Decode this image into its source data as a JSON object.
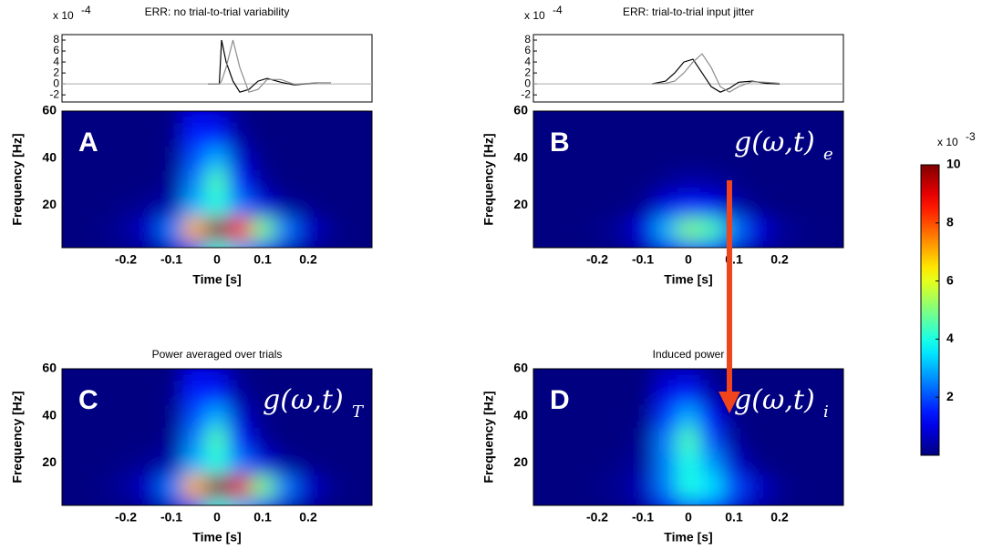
{
  "chart_data": [
    {
      "type": "line",
      "title": "ERR: no trial-to-trial variability",
      "exponent_label": {
        "base": "x 10",
        "exponent": "-4"
      },
      "x": [
        -0.02,
        0,
        0.005,
        0.01,
        0.02,
        0.035,
        0.05,
        0.07,
        0.09,
        0.11,
        0.14,
        0.17,
        0.22,
        0.25
      ],
      "series": [
        {
          "color": "#000000",
          "values": [
            0,
            0,
            0,
            8,
            4,
            0.5,
            -1.5,
            -1,
            0.5,
            1,
            0.3,
            -0.2,
            0.2,
            null
          ]
        },
        {
          "color": "#8c8c8c",
          "values": [
            0,
            0,
            0,
            0.5,
            3,
            8,
            3,
            -1.5,
            -1,
            0.8,
            0.8,
            -0.1,
            0.2,
            0.2
          ]
        }
      ],
      "xlim": [
        -0.34,
        0.34
      ],
      "ylim": [
        -3.3,
        9
      ],
      "yticks": [
        -2,
        0,
        2,
        4,
        6,
        8
      ],
      "zero_line": true
    },
    {
      "type": "line",
      "title": "ERR: trial-to-trial input jitter",
      "exponent_label": {
        "base": "x 10",
        "exponent": "-4"
      },
      "x": [
        -0.08,
        -0.05,
        -0.03,
        -0.01,
        0.01,
        0.03,
        0.05,
        0.07,
        0.09,
        0.11,
        0.14,
        0.17,
        0.2
      ],
      "series": [
        {
          "color": "#000000",
          "values": [
            0,
            0.5,
            2,
            4,
            4.5,
            2,
            -0.5,
            -1.5,
            -0.8,
            0.3,
            0.5,
            0.1,
            0
          ]
        },
        {
          "color": "#8c8c8c",
          "values": [
            0,
            0.1,
            0.5,
            2,
            4,
            5.5,
            3,
            -0.5,
            -1.5,
            -0.5,
            0.4,
            0.3,
            0.1
          ]
        }
      ],
      "xlim": [
        -0.34,
        0.34
      ],
      "ylim": [
        -3.3,
        9
      ],
      "yticks": [
        -2,
        0,
        2,
        4,
        6,
        8
      ],
      "zero_line": true
    },
    {
      "type": "heatmap",
      "panel_label": "A",
      "xlabel": "Time [s]",
      "ylabel": "Frequency [Hz]",
      "x": [
        -0.25,
        -0.2,
        -0.15,
        -0.1,
        -0.05,
        0,
        0.05,
        0.1,
        0.15,
        0.2,
        0.25
      ],
      "y": [
        0,
        10,
        20,
        30,
        40,
        50,
        60
      ],
      "z": [
        [
          0,
          0.1,
          0.2,
          0.6,
          2,
          4,
          3,
          1.5,
          0.5,
          0.2,
          0
        ],
        [
          0.1,
          0.3,
          0.8,
          2.5,
          7,
          10,
          8.5,
          5,
          2.5,
          0.8,
          0.2
        ],
        [
          0,
          0.1,
          0.2,
          0.5,
          3,
          4,
          2.5,
          1,
          0.3,
          0.1,
          0
        ],
        [
          0,
          0,
          0,
          0.2,
          2.5,
          4.5,
          1.5,
          0.3,
          0,
          0,
          0
        ],
        [
          0,
          0,
          0,
          0.1,
          2,
          3,
          0.8,
          0.1,
          0,
          0,
          0
        ],
        [
          0,
          0,
          0,
          0.1,
          1.5,
          1.5,
          0.3,
          0,
          0,
          0,
          0
        ],
        [
          0,
          0,
          0,
          0,
          1,
          0.8,
          0.1,
          0,
          0,
          0,
          0
        ]
      ],
      "xlim": [
        -0.34,
        0.34
      ],
      "ylim": [
        2,
        60
      ],
      "xticks": [
        -0.2,
        -0.1,
        0,
        0.1,
        0.2
      ],
      "yticks": [
        20,
        40,
        60
      ],
      "colormap": "jet"
    },
    {
      "type": "heatmap",
      "panel_label": "B",
      "annotation": {
        "text": "g(ω,t)",
        "subscript": "e"
      },
      "xlabel": "Time [s]",
      "ylabel": "Frequency [Hz]",
      "x": [
        -0.25,
        -0.2,
        -0.15,
        -0.1,
        -0.05,
        0,
        0.05,
        0.1,
        0.15,
        0.2,
        0.25
      ],
      "y": [
        0,
        10,
        20,
        30,
        40,
        50,
        60
      ],
      "z": [
        [
          0,
          0,
          0.1,
          0.3,
          1,
          1.8,
          1.5,
          0.7,
          0.3,
          0.1,
          0
        ],
        [
          0,
          0.1,
          0.3,
          1,
          3,
          5,
          4.5,
          2.5,
          1,
          0.3,
          0.1
        ],
        [
          0,
          0,
          0,
          0.2,
          1,
          1.5,
          1.2,
          0.5,
          0.1,
          0,
          0
        ],
        [
          0,
          0,
          0,
          0,
          0.2,
          0.4,
          0.3,
          0.1,
          0,
          0,
          0
        ],
        [
          0,
          0,
          0,
          0,
          0,
          0,
          0,
          0,
          0,
          0,
          0
        ],
        [
          0,
          0,
          0,
          0,
          0,
          0,
          0,
          0,
          0,
          0,
          0
        ],
        [
          0,
          0,
          0,
          0,
          0,
          0,
          0,
          0,
          0,
          0,
          0
        ]
      ],
      "xlim": [
        -0.34,
        0.34
      ],
      "ylim": [
        2,
        60
      ],
      "xticks": [
        -0.2,
        -0.1,
        0,
        0.1,
        0.2
      ],
      "yticks": [
        20,
        40,
        60
      ],
      "colormap": "jet"
    },
    {
      "type": "heatmap",
      "title": "Power averaged over trials",
      "panel_label": "C",
      "annotation": {
        "text": "g(ω,t)",
        "subscript": "T"
      },
      "xlabel": "Time [s]",
      "ylabel": "Frequency [Hz]",
      "x": [
        -0.25,
        -0.2,
        -0.15,
        -0.1,
        -0.05,
        0,
        0.05,
        0.1,
        0.15,
        0.2,
        0.25
      ],
      "y": [
        0,
        10,
        20,
        30,
        40,
        50,
        60
      ],
      "z": [
        [
          0,
          0.1,
          0.2,
          0.6,
          2,
          4,
          3.2,
          1.5,
          0.5,
          0.2,
          0
        ],
        [
          0.1,
          0.3,
          0.8,
          2.5,
          7,
          10,
          9,
          5,
          2.5,
          0.8,
          0.2
        ],
        [
          0,
          0.1,
          0.2,
          0.5,
          3,
          4,
          2.5,
          1,
          0.3,
          0.1,
          0
        ],
        [
          0,
          0,
          0,
          0.2,
          2.5,
          4.5,
          1.5,
          0.3,
          0,
          0,
          0
        ],
        [
          0,
          0,
          0,
          0.1,
          2,
          3,
          0.8,
          0.1,
          0,
          0,
          0
        ],
        [
          0,
          0,
          0,
          0.1,
          1.5,
          1.5,
          0.3,
          0,
          0,
          0,
          0
        ],
        [
          0,
          0,
          0,
          0,
          1,
          0.8,
          0.1,
          0,
          0,
          0,
          0
        ]
      ],
      "xlim": [
        -0.34,
        0.34
      ],
      "ylim": [
        2,
        60
      ],
      "xticks": [
        -0.2,
        -0.1,
        0,
        0.1,
        0.2
      ],
      "yticks": [
        20,
        40,
        60
      ],
      "colormap": "jet"
    },
    {
      "type": "heatmap",
      "title": "Induced power",
      "panel_label": "D",
      "annotation": {
        "text": "g(ω,t)",
        "subscript": "i"
      },
      "xlabel": "Time [s]",
      "ylabel": "Frequency [Hz]",
      "x": [
        -0.25,
        -0.2,
        -0.15,
        -0.1,
        -0.05,
        0,
        0.05,
        0.1,
        0.15,
        0.2,
        0.25
      ],
      "y": [
        0,
        10,
        20,
        30,
        40,
        50,
        60
      ],
      "z": [
        [
          0,
          0,
          0.1,
          0.3,
          1,
          2,
          1.8,
          0.8,
          0.3,
          0.1,
          0
        ],
        [
          0,
          0.1,
          0.2,
          0.6,
          2.5,
          4,
          3.5,
          2,
          0.8,
          0.2,
          0
        ],
        [
          0,
          0,
          0.1,
          0.3,
          2.5,
          4,
          2.8,
          0.8,
          0.1,
          0,
          0
        ],
        [
          0,
          0,
          0,
          0.2,
          2.5,
          4.5,
          2,
          0.3,
          0,
          0,
          0
        ],
        [
          0,
          0,
          0,
          0.1,
          1.8,
          3,
          1.2,
          0.1,
          0,
          0,
          0
        ],
        [
          0,
          0,
          0,
          0,
          1,
          1.5,
          0.4,
          0,
          0,
          0,
          0
        ],
        [
          0,
          0,
          0,
          0,
          0.5,
          0.6,
          0.1,
          0,
          0,
          0,
          0
        ]
      ],
      "xlim": [
        -0.34,
        0.34
      ],
      "ylim": [
        2,
        60
      ],
      "xticks": [
        -0.2,
        -0.1,
        0,
        0.1,
        0.2
      ],
      "yticks": [
        20,
        40,
        60
      ],
      "colormap": "jet"
    },
    {
      "type": "colorbar",
      "exponent_label": {
        "base": "x 10",
        "exponent": "-3"
      },
      "clim": [
        0,
        10
      ],
      "ticks": [
        2,
        4,
        6,
        8,
        10
      ],
      "colormap": "jet"
    }
  ]
}
